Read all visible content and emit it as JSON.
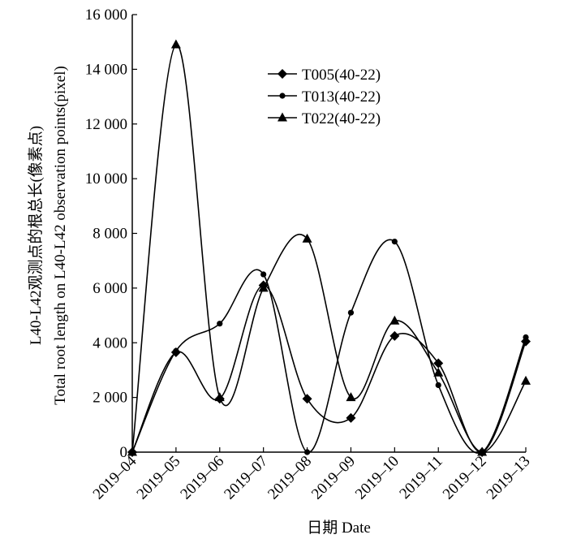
{
  "chart_data": {
    "type": "line",
    "smooth": true,
    "title": "",
    "xlabel": "日期 Date",
    "ylabel_lines": [
      "L40-L42观测点的根总长(像素点)",
      "Total root length on L40-L42 observation points(pixel)"
    ],
    "categories": [
      "2019–04",
      "2019–05",
      "2019–06",
      "2019–07",
      "2019–08",
      "2019–09",
      "2019–10",
      "2019–11",
      "2019–12",
      "2019–13"
    ],
    "ylim": [
      0,
      16000
    ],
    "yticks": [
      0,
      2000,
      4000,
      6000,
      8000,
      10000,
      12000,
      14000,
      16000
    ],
    "ytick_labels": [
      "0",
      "2 000",
      "4 000",
      "6 000",
      "8 000",
      "10 000",
      "12 000",
      "14 000",
      "16 000"
    ],
    "legend_position": "top-right",
    "grid": false,
    "series": [
      {
        "name": "T005(40-22)",
        "marker": "diamond",
        "values": [
          0,
          3650,
          1950,
          6100,
          1950,
          1250,
          4250,
          3250,
          0,
          4050
        ]
      },
      {
        "name": "T013(40-22)",
        "marker": "circle",
        "values": [
          0,
          3700,
          4700,
          6500,
          0,
          5100,
          7700,
          2450,
          0,
          4200
        ]
      },
      {
        "name": "T022(40-22)",
        "marker": "triangle",
        "values": [
          0,
          14900,
          2000,
          6000,
          7800,
          2000,
          4800,
          2900,
          0,
          2600
        ]
      }
    ]
  }
}
